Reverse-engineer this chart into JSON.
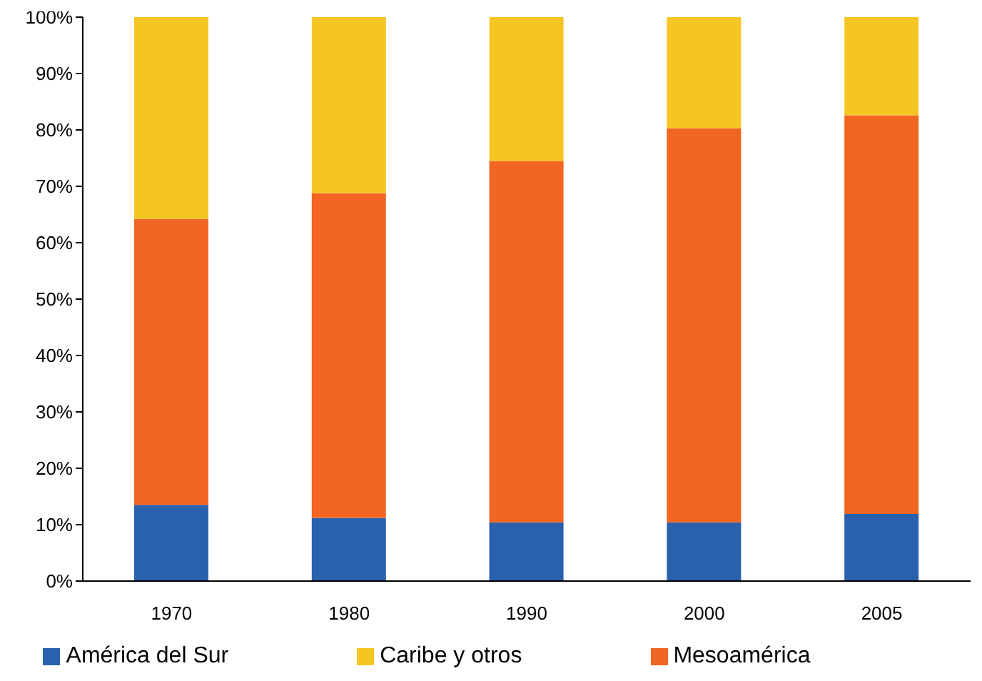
{
  "chart_data": {
    "type": "bar",
    "stacked": true,
    "categories": [
      "1970",
      "1980",
      "1990",
      "2000",
      "2005"
    ],
    "series": [
      {
        "name": "América del Sur",
        "color": "#2a61ae",
        "values": [
          13.5,
          11.2,
          10.4,
          10.4,
          11.9
        ]
      },
      {
        "name": "Mesoamérica",
        "color": "#f26522",
        "values": [
          50.7,
          57.6,
          64.1,
          69.9,
          70.7
        ]
      },
      {
        "name": "Caribe y otros",
        "color": "#f5c623",
        "values": [
          35.8,
          31.2,
          25.5,
          19.7,
          17.4
        ]
      }
    ],
    "ylim": [
      0,
      100
    ],
    "yticks": [
      {
        "value": 0,
        "label": "0%"
      },
      {
        "value": 10,
        "label": "10%"
      },
      {
        "value": 20,
        "label": "20%"
      },
      {
        "value": 30,
        "label": "30%"
      },
      {
        "value": 40,
        "label": "40%"
      },
      {
        "value": 50,
        "label": "50%"
      },
      {
        "value": 60,
        "label": "60%"
      },
      {
        "value": 70,
        "label": "70%"
      },
      {
        "value": 80,
        "label": "80%"
      },
      {
        "value": 90,
        "label": "90%"
      },
      {
        "value": 100,
        "label": "100%"
      }
    ],
    "legend": "bottom"
  }
}
